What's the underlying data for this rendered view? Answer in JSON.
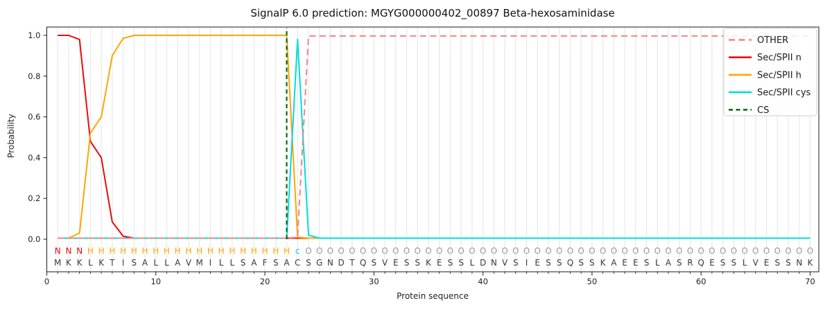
{
  "chart_data": {
    "type": "line",
    "title": "SignalP 6.0 prediction: MGYG000000402_00897 Beta-hexosaminidase",
    "xlabel": "Protein sequence",
    "ylabel": "Probability",
    "xlim": [
      0,
      70.8
    ],
    "ylim": [
      0.0,
      1.0
    ],
    "xticks": [
      0,
      10,
      20,
      30,
      40,
      50,
      60,
      70
    ],
    "yticks": [
      "0.0",
      "0.2",
      "0.4",
      "0.6",
      "0.8",
      "1.0"
    ],
    "grid": "vertical-per-residue",
    "legend_position": "upper right",
    "x": [
      1,
      2,
      3,
      4,
      5,
      6,
      7,
      8,
      9,
      10,
      11,
      12,
      13,
      14,
      15,
      16,
      17,
      18,
      19,
      20,
      21,
      22,
      23,
      24,
      25,
      26,
      27,
      28,
      29,
      30,
      31,
      32,
      33,
      34,
      35,
      36,
      37,
      38,
      39,
      40,
      41,
      42,
      43,
      44,
      45,
      46,
      47,
      48,
      49,
      50,
      51,
      52,
      53,
      54,
      55,
      56,
      57,
      58,
      59,
      60,
      61,
      62,
      63,
      64,
      65,
      66,
      67,
      68,
      69,
      70
    ],
    "series": [
      {
        "name": "Sec/SPII n",
        "color": "#ea0a0a",
        "dash": null,
        "values": [
          1.0,
          1.0,
          0.98,
          0.48,
          0.4,
          0.085,
          0.015,
          0.005,
          0.005,
          0.005,
          0.005,
          0.005,
          0.005,
          0.005,
          0.005,
          0.005,
          0.005,
          0.005,
          0.005,
          0.005,
          0.005,
          0.005,
          0.005,
          0.005,
          0.005,
          0.005,
          0.005,
          0.005,
          0.005,
          0.005,
          0.005,
          0.005,
          0.005,
          0.005,
          0.005,
          0.005,
          0.005,
          0.005,
          0.005,
          0.005,
          0.005,
          0.005,
          0.005,
          0.005,
          0.005,
          0.005,
          0.005,
          0.005,
          0.005,
          0.005,
          0.005,
          0.005,
          0.005,
          0.005,
          0.005,
          0.005,
          0.005,
          0.005,
          0.005,
          0.005,
          0.005,
          0.005,
          0.005,
          0.005,
          0.005,
          0.005,
          0.005,
          0.005,
          0.005,
          0.005
        ]
      },
      {
        "name": "Sec/SPII h",
        "color": "#ffa500",
        "dash": null,
        "values": [
          0.005,
          0.005,
          0.03,
          0.52,
          0.6,
          0.9,
          0.985,
          1.0,
          1.0,
          1.0,
          1.0,
          1.0,
          1.0,
          1.0,
          1.0,
          1.0,
          1.0,
          1.0,
          1.0,
          1.0,
          1.0,
          1.0,
          0.01,
          0.005,
          0.005,
          0.005,
          0.005,
          0.005,
          0.005,
          0.005,
          0.005,
          0.005,
          0.005,
          0.005,
          0.005,
          0.005,
          0.005,
          0.005,
          0.005,
          0.005,
          0.005,
          0.005,
          0.005,
          0.005,
          0.005,
          0.005,
          0.005,
          0.005,
          0.005,
          0.005,
          0.005,
          0.005,
          0.005,
          0.005,
          0.005,
          0.005,
          0.005,
          0.005,
          0.005,
          0.005,
          0.005,
          0.005,
          0.005,
          0.005,
          0.005,
          0.005,
          0.005,
          0.005,
          0.005,
          0.005
        ]
      },
      {
        "name": "Sec/SPII cys",
        "color": "#00dcdc",
        "dash": null,
        "values": [
          0.005,
          0.005,
          0.005,
          0.005,
          0.005,
          0.005,
          0.005,
          0.005,
          0.005,
          0.005,
          0.005,
          0.005,
          0.005,
          0.005,
          0.005,
          0.005,
          0.005,
          0.005,
          0.005,
          0.005,
          0.005,
          0.005,
          0.98,
          0.02,
          0.005,
          0.005,
          0.005,
          0.005,
          0.005,
          0.005,
          0.005,
          0.005,
          0.005,
          0.005,
          0.005,
          0.005,
          0.005,
          0.005,
          0.005,
          0.005,
          0.005,
          0.005,
          0.005,
          0.005,
          0.005,
          0.005,
          0.005,
          0.005,
          0.005,
          0.005,
          0.005,
          0.005,
          0.005,
          0.005,
          0.005,
          0.005,
          0.005,
          0.005,
          0.005,
          0.005,
          0.005,
          0.005,
          0.005,
          0.005,
          0.005,
          0.005,
          0.005,
          0.005,
          0.005,
          0.005
        ]
      },
      {
        "name": "OTHER",
        "color": "#f58282",
        "dash": [
          9,
          5.5
        ],
        "values": [
          0.005,
          0.005,
          0.005,
          0.005,
          0.005,
          0.005,
          0.005,
          0.005,
          0.005,
          0.005,
          0.005,
          0.005,
          0.005,
          0.005,
          0.005,
          0.005,
          0.005,
          0.005,
          0.005,
          0.005,
          0.005,
          0.005,
          0.01,
          0.997,
          0.997,
          0.997,
          0.997,
          0.997,
          0.997,
          0.997,
          0.997,
          0.997,
          0.997,
          0.997,
          0.997,
          0.997,
          0.997,
          0.997,
          0.997,
          0.997,
          0.997,
          0.997,
          0.997,
          0.997,
          0.997,
          0.997,
          0.997,
          0.997,
          0.997,
          0.997,
          0.997,
          0.997,
          0.997,
          0.997,
          0.997,
          0.997,
          0.997,
          0.997,
          0.997,
          0.997,
          0.997,
          0.997,
          0.997,
          0.997,
          0.997,
          0.997,
          0.997,
          0.997,
          0.997,
          0.997
        ]
      },
      {
        "name": "CS",
        "color": "#0a6b0a",
        "dash": [
          6,
          4.5
        ],
        "type": "vline",
        "x_position": 22
      }
    ],
    "legend_order": [
      "OTHER",
      "Sec/SPII n",
      "Sec/SPII h",
      "Sec/SPII cys",
      "CS"
    ],
    "sequence": "MKKLKTISALLAVMILLSAFSACSGNDTQSVESSKESSLDNVSIESSQSSKAEESLASRQESSLVESSNK",
    "annotation": "NNNHHHHHHHHHHHHHHHHHHHcOOOOOOOOOOOOOOOOOOOOOOOOOOOOOOOOOOOOOOOOOOOOOOO",
    "annotation_colors": {
      "N": "#ea0a0a",
      "H": "#ffa500",
      "c": "#00cfe0",
      "O": "#989898"
    },
    "sequence_color": "#3c3c3c",
    "grid_color": "#e9e9e9",
    "spine_color": "#1a1a1a"
  }
}
